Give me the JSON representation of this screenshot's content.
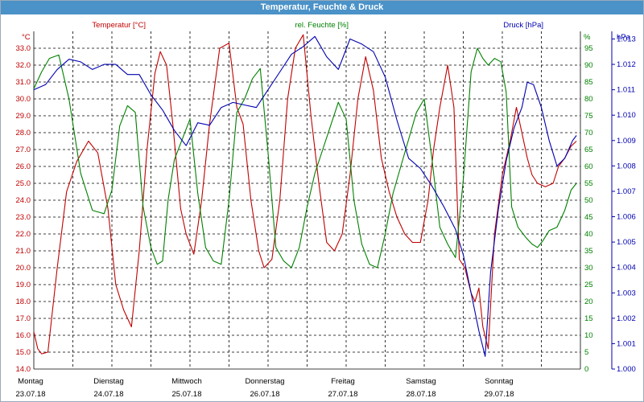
{
  "window": {
    "title": "Temperatur, Feuchte & Druck"
  },
  "colors": {
    "temp": "#c00000",
    "hum": "#008000",
    "press": "#0000b0",
    "grid": "#000000"
  },
  "chart_data": {
    "type": "line",
    "title": "Temperatur, Feuchte & Druck",
    "grid": true,
    "x_labels": [
      {
        "day": "Montag",
        "date": "23.07.18"
      },
      {
        "day": "Dienstag",
        "date": "24.07.18"
      },
      {
        "day": "Mittwoch",
        "date": "25.07.18"
      },
      {
        "day": "Donnerstag",
        "date": "26.07.18"
      },
      {
        "day": "Freitag",
        "date": "27.07.18"
      },
      {
        "day": "Samstag",
        "date": "28.07.18"
      },
      {
        "day": "Sonntag",
        "date": "29.07.18"
      }
    ],
    "axes": {
      "temp": {
        "label": "Temperatur [°C]",
        "unit": "°C",
        "min": 14.0,
        "max": 34.0,
        "ticks": [
          "14.0",
          "15.0",
          "16.0",
          "17.0",
          "18.0",
          "19.0",
          "20.0",
          "21.0",
          "22.0",
          "23.0",
          "24.0",
          "25.0",
          "26.0",
          "27.0",
          "28.0",
          "29.0",
          "30.0",
          "31.0",
          "32.0",
          "33.0"
        ]
      },
      "hum": {
        "label": "rel. Feuchte [%]",
        "unit": "%",
        "min": 0,
        "max": 100,
        "ticks": [
          "0",
          "5",
          "10",
          "15",
          "20",
          "25",
          "30",
          "35",
          "40",
          "45",
          "50",
          "55",
          "60",
          "65",
          "70",
          "75",
          "80",
          "85",
          "90",
          "95"
        ]
      },
      "press": {
        "label": "Druck [hPa]",
        "unit": "hPa",
        "min": 1.0,
        "max": 1.0133,
        "ticks": [
          "1.000",
          "1.001",
          "1.002",
          "1.003",
          "1.004",
          "1.005",
          "1.006",
          "1.007",
          "1.008",
          "1.009",
          "1.010",
          "1.011",
          "1.012",
          "1.013"
        ]
      }
    },
    "series": [
      {
        "name": "Temperatur [°C]",
        "axis": "temp",
        "x": [
          0,
          0.05,
          0.1,
          0.18,
          0.3,
          0.42,
          0.55,
          0.7,
          0.82,
          0.95,
          1.05,
          1.15,
          1.25,
          1.35,
          1.45,
          1.55,
          1.62,
          1.7,
          1.78,
          1.88,
          1.95,
          2.05,
          2.15,
          2.25,
          2.38,
          2.5,
          2.6,
          2.68,
          2.78,
          2.88,
          2.95,
          3.05,
          3.15,
          3.25,
          3.35,
          3.45,
          3.55,
          3.65,
          3.75,
          3.85,
          3.95,
          4.05,
          4.15,
          4.25,
          4.35,
          4.45,
          4.55,
          4.65,
          4.75,
          4.85,
          4.95,
          5.05,
          5.12,
          5.2,
          5.3,
          5.38,
          5.45,
          5.52,
          5.6,
          5.65,
          5.7,
          5.75,
          5.82,
          5.9,
          6.0,
          6.1,
          6.18,
          6.25,
          6.32,
          6.38,
          6.45,
          6.55,
          6.65,
          6.72,
          6.8,
          6.88,
          6.95
        ],
        "values": [
          16.2,
          15.2,
          14.9,
          15.0,
          20.0,
          24.5,
          26.3,
          27.5,
          26.8,
          23.5,
          19.0,
          17.5,
          16.5,
          21.0,
          27.0,
          31.5,
          32.8,
          32.0,
          28.5,
          23.5,
          22.0,
          20.8,
          24.0,
          28.5,
          33.0,
          33.3,
          29.5,
          28.5,
          24.0,
          21.0,
          20.0,
          20.5,
          24.0,
          30.0,
          33.0,
          33.8,
          29.0,
          25.0,
          21.5,
          21.0,
          22.0,
          25.5,
          30.0,
          32.5,
          30.5,
          26.5,
          24.5,
          23.0,
          22.0,
          21.5,
          21.5,
          24.0,
          27.0,
          29.5,
          32.0,
          29.5,
          20.5,
          20.0,
          18.5,
          18.0,
          18.8,
          16.5,
          15.2,
          22.0,
          25.5,
          27.5,
          29.5,
          28.0,
          26.5,
          25.5,
          25.0,
          24.8,
          25.0,
          26.0,
          26.5,
          27.2,
          27.5
        ]
      },
      {
        "name": "rel. Feuchte [%]",
        "axis": "hum",
        "x": [
          0,
          0.1,
          0.2,
          0.32,
          0.45,
          0.6,
          0.75,
          0.9,
          1.0,
          1.1,
          1.2,
          1.3,
          1.4,
          1.5,
          1.58,
          1.65,
          1.72,
          1.8,
          1.9,
          2.0,
          2.1,
          2.2,
          2.3,
          2.4,
          2.5,
          2.6,
          2.7,
          2.8,
          2.9,
          3.0,
          3.1,
          3.2,
          3.3,
          3.4,
          3.5,
          3.6,
          3.7,
          3.8,
          3.9,
          4.0,
          4.1,
          4.2,
          4.3,
          4.4,
          4.5,
          4.6,
          4.7,
          4.8,
          4.9,
          5.0,
          5.1,
          5.2,
          5.3,
          5.4,
          5.5,
          5.6,
          5.68,
          5.75,
          5.82,
          5.9,
          5.98,
          6.05,
          6.12,
          6.2,
          6.3,
          6.38,
          6.45,
          6.52,
          6.6,
          6.7,
          6.8,
          6.88,
          6.95
        ],
        "values": [
          83,
          88,
          92,
          93,
          80,
          58,
          47,
          46,
          53,
          72,
          78,
          76,
          48,
          36,
          31,
          32,
          50,
          62,
          68,
          74,
          52,
          36,
          32,
          31,
          50,
          76,
          80,
          86,
          89,
          64,
          36,
          32,
          30,
          36,
          48,
          58,
          65,
          72,
          79,
          74,
          50,
          37,
          31,
          30,
          40,
          52,
          60,
          68,
          76,
          80,
          62,
          42,
          37,
          33,
          56,
          88,
          95,
          92,
          90,
          92,
          91,
          82,
          48,
          42,
          39,
          37,
          36,
          38,
          41,
          42,
          47,
          53,
          55
        ]
      },
      {
        "name": "Druck [hPa]",
        "axis": "press",
        "x": [
          0,
          0.15,
          0.3,
          0.45,
          0.6,
          0.75,
          0.9,
          1.05,
          1.2,
          1.35,
          1.5,
          1.65,
          1.8,
          1.95,
          2.1,
          2.25,
          2.4,
          2.55,
          2.7,
          2.85,
          3.0,
          3.15,
          3.3,
          3.45,
          3.6,
          3.75,
          3.9,
          4.05,
          4.2,
          4.35,
          4.5,
          4.65,
          4.8,
          4.95,
          5.1,
          5.25,
          5.4,
          5.5,
          5.6,
          5.7,
          5.78,
          5.85,
          5.95,
          6.05,
          6.15,
          6.25,
          6.32,
          6.4,
          6.5,
          6.6,
          6.7,
          6.8,
          6.9,
          6.95
        ],
        "values": [
          1.011,
          1.0112,
          1.0118,
          1.0122,
          1.0121,
          1.0118,
          1.012,
          1.012,
          1.0116,
          1.0116,
          1.0108,
          1.0102,
          1.0094,
          1.0088,
          1.0097,
          1.0096,
          1.0103,
          1.0105,
          1.0104,
          1.0103,
          1.011,
          1.0117,
          1.0124,
          1.0127,
          1.0131,
          1.0123,
          1.0118,
          1.013,
          1.0128,
          1.0125,
          1.0115,
          1.0098,
          1.0083,
          1.0079,
          1.0072,
          1.0064,
          1.0055,
          1.0045,
          1.003,
          1.0015,
          1.0005,
          1.0038,
          1.0063,
          1.0082,
          1.0095,
          1.0103,
          1.0113,
          1.0112,
          1.0103,
          1.009,
          1.008,
          1.0083,
          1.009,
          1.0092
        ]
      }
    ]
  }
}
